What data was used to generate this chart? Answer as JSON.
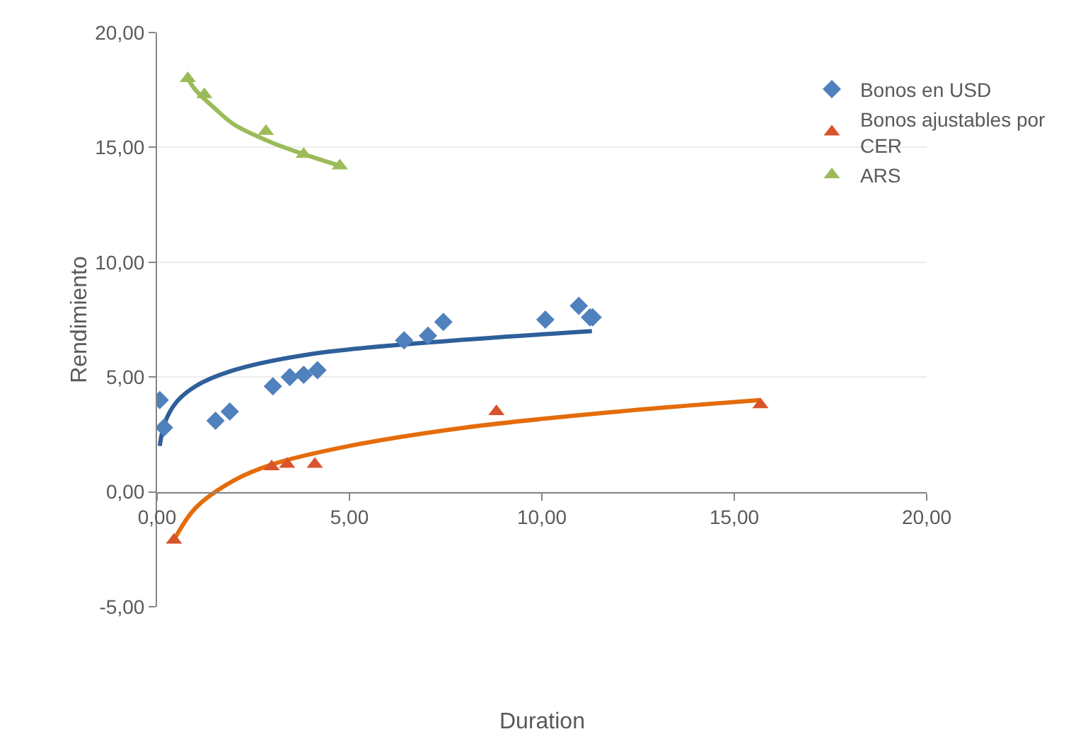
{
  "chart_data": {
    "type": "scatter",
    "xlabel": "Duration",
    "ylabel": "Rendimiento",
    "xlim": [
      0,
      20
    ],
    "ylim": [
      -5,
      20
    ],
    "xticks": [
      {
        "value": 0,
        "label": "0,00"
      },
      {
        "value": 5,
        "label": "5,00"
      },
      {
        "value": 10,
        "label": "10,00"
      },
      {
        "value": 15,
        "label": "15,00"
      },
      {
        "value": 20,
        "label": "20,00"
      }
    ],
    "yticks": [
      {
        "value": -5,
        "label": "-5,00"
      },
      {
        "value": 0,
        "label": "0,00"
      },
      {
        "value": 5,
        "label": "5,00"
      },
      {
        "value": 10,
        "label": "10,00"
      },
      {
        "value": 15,
        "label": "15,00"
      },
      {
        "value": 20,
        "label": "20,00"
      }
    ],
    "grid": "y",
    "legend": "top right",
    "series": [
      {
        "name": "Bonos en USD",
        "marker": "diamond",
        "color": "#4f81bd",
        "x": [
          0.07,
          0.18,
          1.52,
          1.89,
          3.01,
          3.45,
          3.81,
          4.17,
          6.42,
          7.04,
          7.44,
          10.09,
          10.96,
          11.25,
          11.32
        ],
        "values": [
          4.0,
          2.8,
          3.1,
          3.5,
          4.6,
          5.0,
          5.1,
          5.3,
          6.6,
          6.8,
          7.4,
          7.5,
          8.1,
          7.6,
          7.6
        ]
      },
      {
        "name": "Bonos ajustables por CER",
        "marker": "triangle",
        "color": "#d9542b",
        "x": [
          0.44,
          2.98,
          3.38,
          4.1,
          8.82,
          15.68
        ],
        "values": [
          -2.1,
          1.1,
          1.2,
          1.2,
          3.5,
          3.8
        ]
      },
      {
        "name": "ARS",
        "marker": "triangle",
        "color": "#9bbb59",
        "x": [
          0.8,
          1.23,
          2.83,
          3.81,
          4.75
        ],
        "values": [
          18.0,
          17.3,
          15.7,
          14.7,
          14.2
        ]
      },
      {
        "type": "line",
        "marker": "none",
        "color": "#2e5f9a",
        "x": [
          0.07,
          0.2,
          0.5,
          1,
          2,
          4,
          7,
          11.3
        ],
        "values": [
          2.0,
          3.0,
          3.9,
          4.6,
          5.3,
          6.0,
          6.5,
          7.0
        ]
      },
      {
        "type": "line",
        "marker": "none",
        "color": "#e46c0a",
        "x": [
          0.44,
          1,
          2,
          3,
          5,
          8,
          12,
          15.68
        ],
        "values": [
          -2.1,
          -0.7,
          0.5,
          1.2,
          2.0,
          2.8,
          3.5,
          4.0
        ]
      },
      {
        "type": "line",
        "marker": "none",
        "color": "#9bbb59",
        "x": [
          0.8,
          1,
          1.5,
          2,
          3,
          4,
          4.75
        ],
        "values": [
          18.0,
          17.5,
          16.7,
          16.0,
          15.2,
          14.6,
          14.2
        ]
      }
    ]
  }
}
